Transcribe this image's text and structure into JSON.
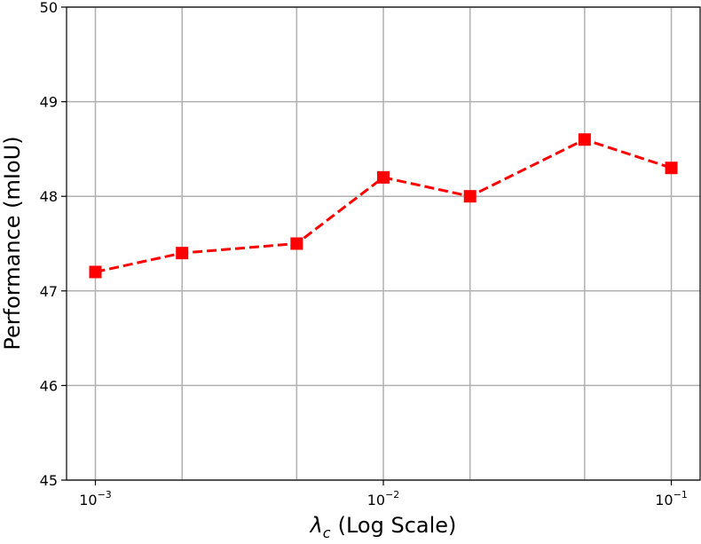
{
  "chart_data": {
    "type": "line",
    "xlabel": {
      "symbol": "λ",
      "subscript": "c",
      "text": "(Log Scale)"
    },
    "ylabel": "Performance (mIoU)",
    "x": [
      0.001,
      0.002,
      0.005,
      0.01,
      0.02,
      0.05,
      0.1
    ],
    "series": [
      {
        "name": "Performance",
        "color": "#ff0000",
        "values": [
          47.2,
          47.4,
          47.5,
          48.2,
          48.0,
          48.6,
          48.3
        ]
      }
    ],
    "xscale": "log",
    "xlim": [
      0.000794,
      0.1259
    ],
    "xticks": [
      {
        "value": 0.001,
        "label": "10",
        "exponent": "−3"
      },
      {
        "value": 0.01,
        "label": "10",
        "exponent": "−2"
      },
      {
        "value": 0.1,
        "label": "10",
        "exponent": "−1"
      }
    ],
    "ylim": [
      45,
      50
    ],
    "yticks": [
      45,
      46,
      47,
      48,
      49,
      50
    ],
    "grid": true,
    "line_style": "dashed",
    "marker": "square"
  }
}
